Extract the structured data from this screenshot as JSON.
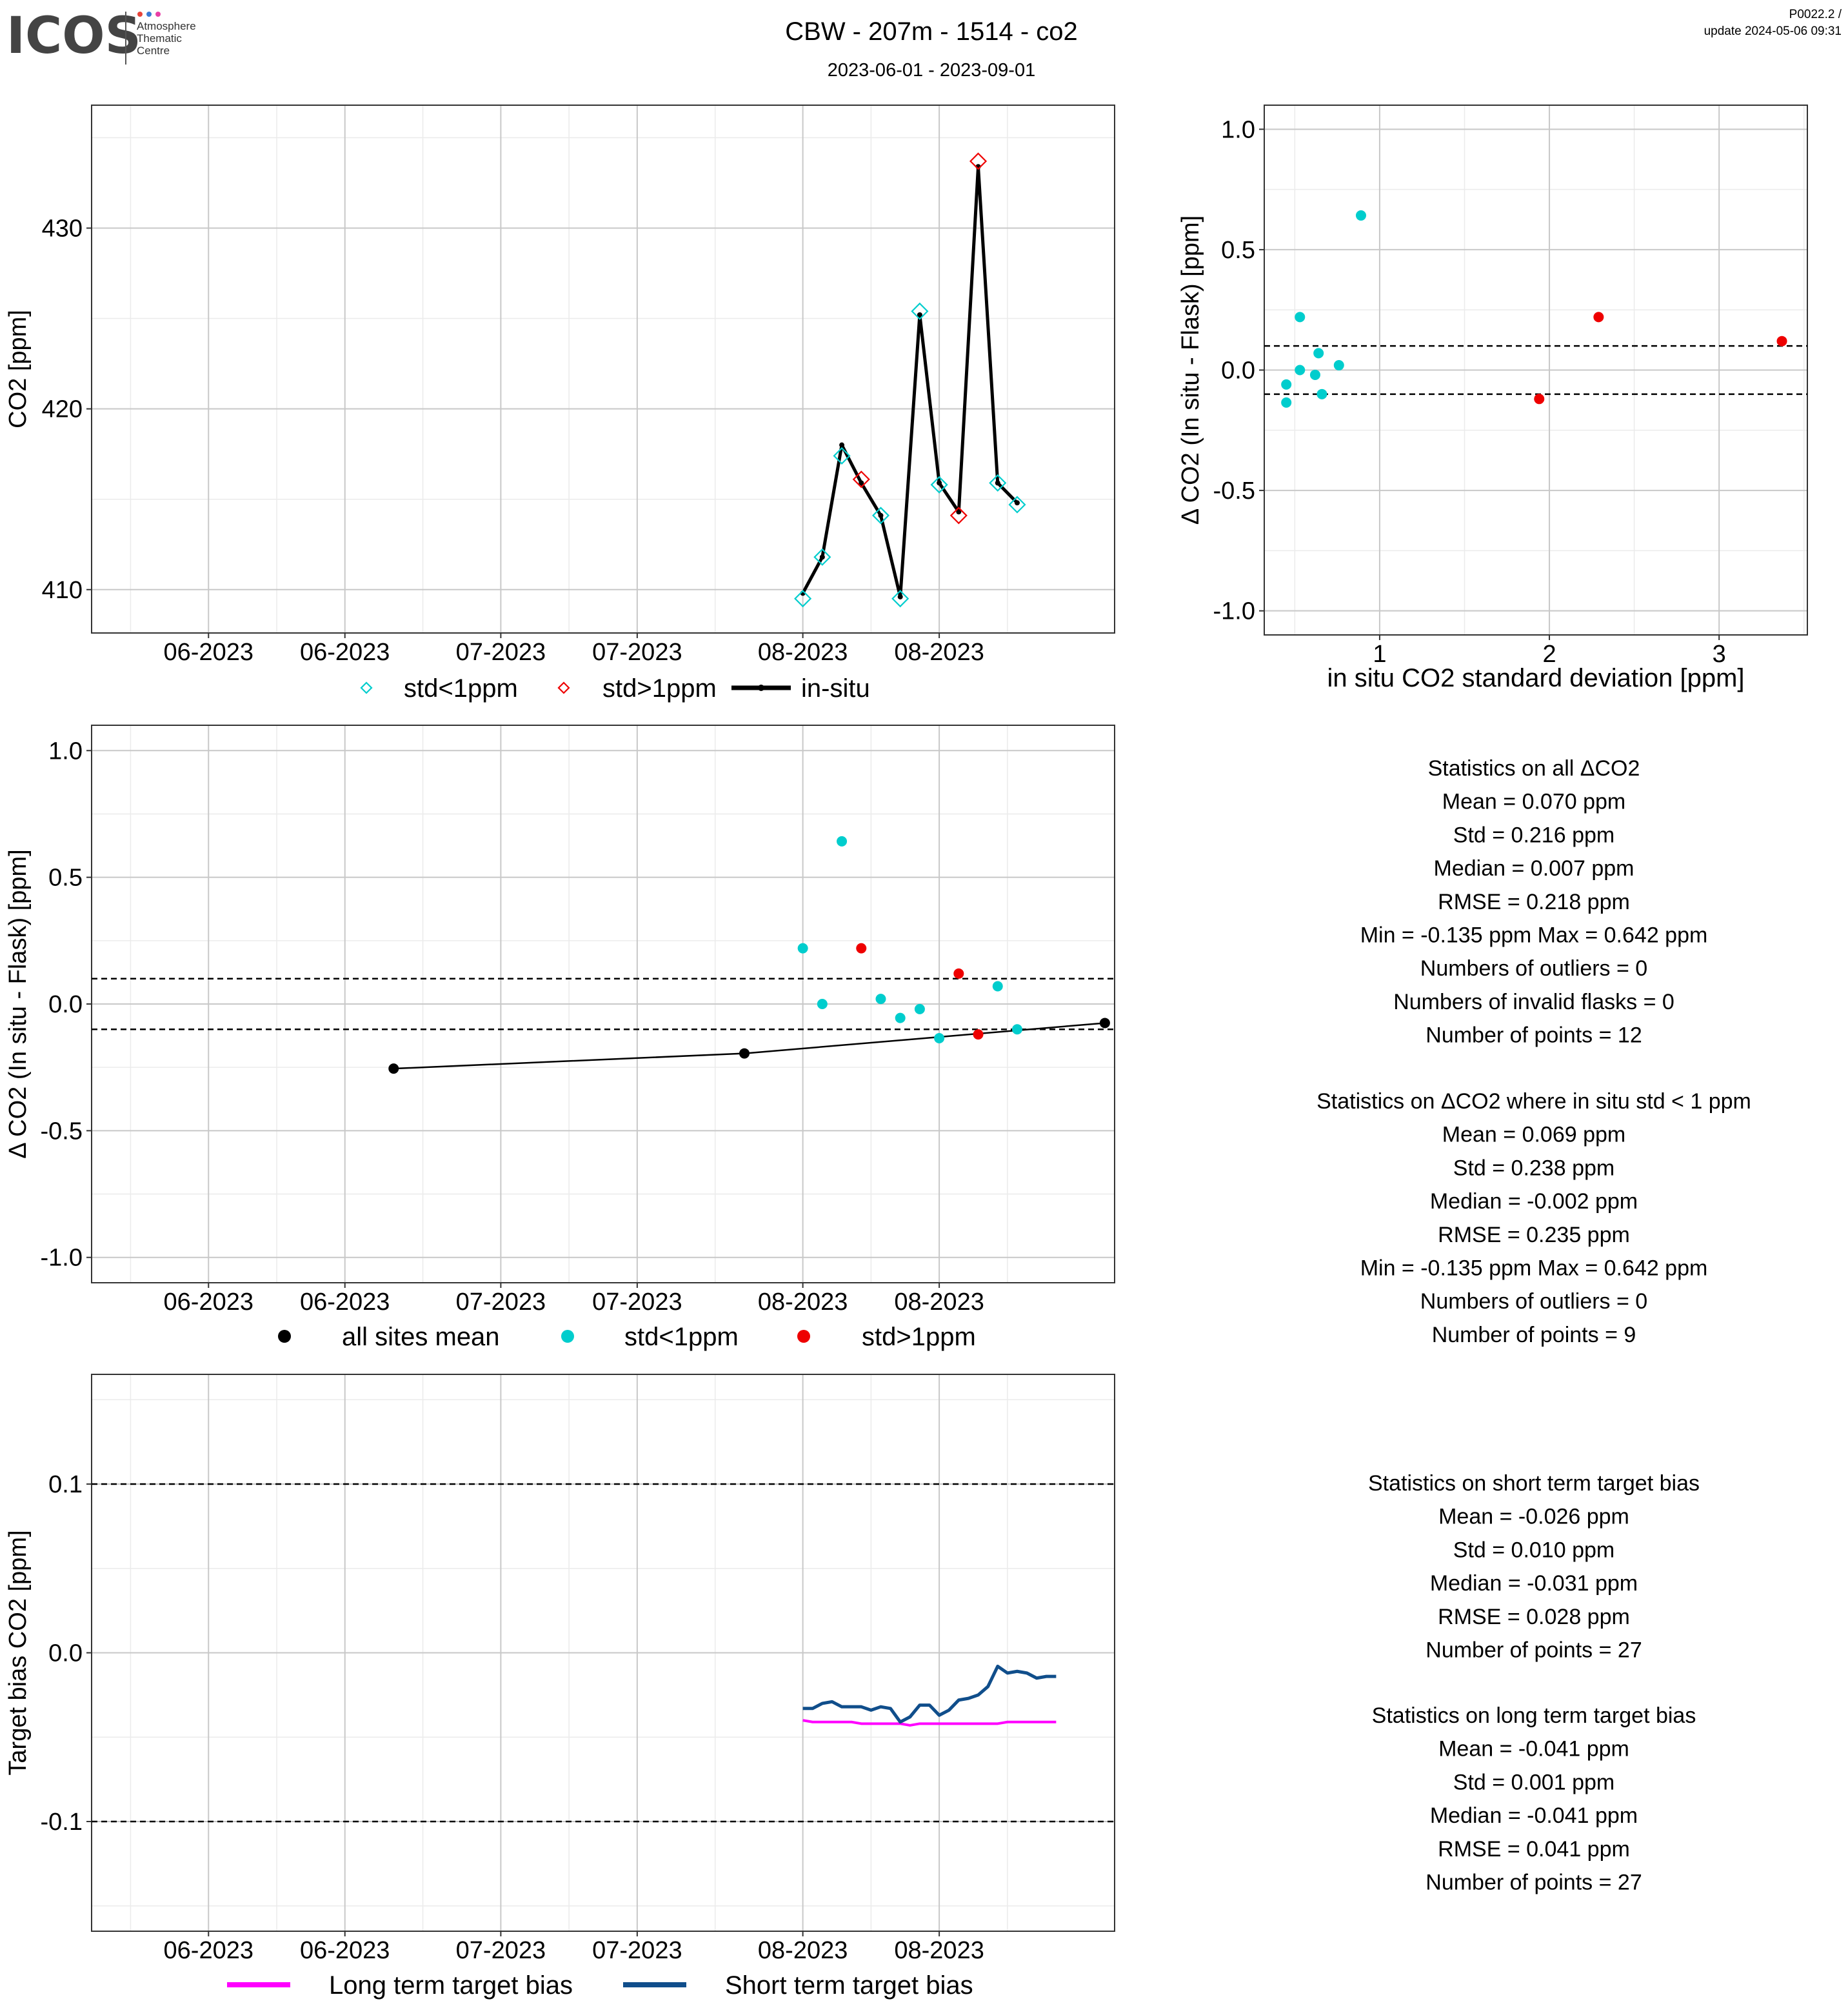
{
  "header": {
    "logo_text": "ICOS",
    "logo_sub": [
      "Atmosphere",
      "Thematic",
      "Centre"
    ],
    "title": "CBW - 207m - 1514 - co2",
    "subtitle": "2023-06-01 - 2023-09-01",
    "version": "P0022.2 /",
    "update": "update  2024-05-06 09:31"
  },
  "colors": {
    "std_lt": "#00CDCD",
    "std_gt": "#EE0000",
    "insitu": "#000000",
    "long_bias": "#FF00FF",
    "short_bias": "#104E8B",
    "grid_major": "#C8C8C8",
    "grid_minor": "#EBEBEB",
    "logo_dots": [
      "#E8443A",
      "#3A7BD5",
      "#E83FA6"
    ]
  },
  "chart_data": [
    {
      "id": "co2_timeseries",
      "type": "line",
      "xlabel": "",
      "ylabel": "CO2 [ppm]",
      "x_ticks": [
        "06-2023",
        "06-2023",
        "07-2023",
        "07-2023",
        "08-2023",
        "08-2023"
      ],
      "x_tick_dates": [
        "2023-06-01",
        "2023-06-15",
        "2023-07-01",
        "2023-07-15",
        "2023-08-01",
        "2023-08-15"
      ],
      "xlim": [
        "2023-05-20",
        "2023-09-02"
      ],
      "ylim": [
        407.6,
        436.8
      ],
      "y_ticks": [
        410,
        420,
        430
      ],
      "legend": [
        "std<1ppm",
        "std>1ppm",
        "in-situ"
      ],
      "legend_position": "bottom",
      "insitu": {
        "dates": [
          "2023-08-01",
          "2023-08-03",
          "2023-08-05",
          "2023-08-07",
          "2023-08-09",
          "2023-08-11",
          "2023-08-13",
          "2023-08-15",
          "2023-08-17",
          "2023-08-19",
          "2023-08-21",
          "2023-08-23"
        ],
        "values": [
          409.8,
          411.8,
          418.0,
          415.9,
          414.1,
          409.6,
          425.2,
          415.9,
          414.3,
          433.4,
          415.9,
          414.8
        ]
      },
      "flask_std_lt_1": {
        "dates": [
          "2023-08-01",
          "2023-08-03",
          "2023-08-05",
          "2023-08-09",
          "2023-08-11",
          "2023-08-13",
          "2023-08-15",
          "2023-08-21",
          "2023-08-23"
        ],
        "values": [
          409.5,
          411.8,
          417.4,
          414.1,
          409.5,
          425.4,
          415.8,
          415.9,
          414.7
        ]
      },
      "flask_std_gt_1": {
        "dates": [
          "2023-08-07",
          "2023-08-17",
          "2023-08-19"
        ],
        "values": [
          416.1,
          414.1,
          433.7
        ]
      }
    },
    {
      "id": "delta_vs_std",
      "type": "scatter",
      "xlabel": "in situ CO2 standard deviation [ppm]",
      "ylabel": "Δ CO2 (In situ - Flask) [ppm]",
      "xlim": [
        0.32,
        3.52
      ],
      "ylim": [
        -1.1,
        1.1
      ],
      "x_ticks": [
        1,
        2,
        3
      ],
      "y_ticks": [
        "1.0",
        "0.5",
        "0.0",
        "-0.5",
        "-1.0"
      ],
      "y_tick_values": [
        1.0,
        0.5,
        0.0,
        -0.5,
        -1.0
      ],
      "hlines": [
        0.1,
        -0.1
      ],
      "series": [
        {
          "name": "std<1ppm",
          "x": [
            0.45,
            0.45,
            0.53,
            0.53,
            0.62,
            0.64,
            0.66,
            0.76,
            0.89
          ],
          "y": [
            -0.06,
            -0.135,
            0.0,
            0.22,
            -0.02,
            0.07,
            -0.1,
            0.02,
            0.642
          ]
        },
        {
          "name": "std>1ppm",
          "x": [
            1.94,
            2.29,
            3.37
          ],
          "y": [
            -0.12,
            0.22,
            0.12
          ]
        }
      ]
    },
    {
      "id": "delta_timeseries",
      "type": "scatter",
      "xlabel": "",
      "ylabel": "Δ CO2 (In situ - Flask) [ppm]",
      "x_ticks": [
        "06-2023",
        "06-2023",
        "07-2023",
        "07-2023",
        "08-2023",
        "08-2023"
      ],
      "x_tick_dates": [
        "2023-06-01",
        "2023-06-15",
        "2023-07-01",
        "2023-07-15",
        "2023-08-01",
        "2023-08-15"
      ],
      "xlim": [
        "2023-05-20",
        "2023-09-02"
      ],
      "ylim": [
        -1.1,
        1.1
      ],
      "y_ticks": [
        "1.0",
        "0.5",
        "0.0",
        "-0.5",
        "-1.0"
      ],
      "y_tick_values": [
        1.0,
        0.5,
        0.0,
        -0.5,
        -1.0
      ],
      "hlines": [
        0.1,
        -0.1
      ],
      "legend": [
        "all sites mean",
        "std<1ppm",
        "std>1ppm"
      ],
      "legend_position": "bottom",
      "all_sites_mean": {
        "dates": [
          "2023-06-20",
          "2023-07-26",
          "2023-09-01"
        ],
        "values": [
          -0.255,
          -0.195,
          -0.075
        ]
      },
      "std_lt_1": {
        "dates": [
          "2023-08-01",
          "2023-08-03",
          "2023-08-05",
          "2023-08-09",
          "2023-08-11",
          "2023-08-13",
          "2023-08-15",
          "2023-08-21",
          "2023-08-23"
        ],
        "values": [
          0.22,
          0.0,
          0.642,
          0.02,
          -0.055,
          -0.02,
          -0.135,
          0.07,
          -0.1
        ]
      },
      "std_gt_1": {
        "dates": [
          "2023-08-07",
          "2023-08-17",
          "2023-08-19"
        ],
        "values": [
          0.22,
          0.12,
          -0.12
        ]
      }
    },
    {
      "id": "target_bias",
      "type": "line",
      "xlabel": "",
      "ylabel": "Target bias CO2 [ppm]",
      "x_ticks": [
        "06-2023",
        "06-2023",
        "07-2023",
        "07-2023",
        "08-2023",
        "08-2023"
      ],
      "x_tick_dates": [
        "2023-06-01",
        "2023-06-15",
        "2023-07-01",
        "2023-07-15",
        "2023-08-01",
        "2023-08-15"
      ],
      "xlim": [
        "2023-05-20",
        "2023-09-02"
      ],
      "ylim": [
        -0.165,
        0.165
      ],
      "y_ticks": [
        "0.1",
        "0.0",
        "-0.1"
      ],
      "y_tick_values": [
        0.1,
        0.0,
        -0.1
      ],
      "hlines": [
        0.1,
        -0.1
      ],
      "legend": [
        "Long term target bias",
        "Short term target bias"
      ],
      "legend_position": "bottom",
      "series": [
        {
          "name": "Long term target bias",
          "dates": [
            "2023-08-01",
            "2023-08-02",
            "2023-08-03",
            "2023-08-04",
            "2023-08-05",
            "2023-08-06",
            "2023-08-07",
            "2023-08-08",
            "2023-08-09",
            "2023-08-10",
            "2023-08-11",
            "2023-08-12",
            "2023-08-13",
            "2023-08-14",
            "2023-08-15",
            "2023-08-16",
            "2023-08-17",
            "2023-08-18",
            "2023-08-19",
            "2023-08-20",
            "2023-08-21",
            "2023-08-22",
            "2023-08-23",
            "2023-08-24",
            "2023-08-25",
            "2023-08-26",
            "2023-08-27"
          ],
          "values": [
            -0.04,
            -0.041,
            -0.041,
            -0.041,
            -0.041,
            -0.041,
            -0.042,
            -0.042,
            -0.042,
            -0.042,
            -0.042,
            -0.043,
            -0.042,
            -0.042,
            -0.042,
            -0.042,
            -0.042,
            -0.042,
            -0.042,
            -0.042,
            -0.042,
            -0.041,
            -0.041,
            -0.041,
            -0.041,
            -0.041,
            -0.041
          ]
        },
        {
          "name": "Short term target bias",
          "dates": [
            "2023-08-01",
            "2023-08-02",
            "2023-08-03",
            "2023-08-04",
            "2023-08-05",
            "2023-08-06",
            "2023-08-07",
            "2023-08-08",
            "2023-08-09",
            "2023-08-10",
            "2023-08-11",
            "2023-08-12",
            "2023-08-13",
            "2023-08-14",
            "2023-08-15",
            "2023-08-16",
            "2023-08-17",
            "2023-08-18",
            "2023-08-19",
            "2023-08-20",
            "2023-08-21",
            "2023-08-22",
            "2023-08-23",
            "2023-08-24",
            "2023-08-25",
            "2023-08-26",
            "2023-08-27"
          ],
          "values": [
            -0.033,
            -0.033,
            -0.03,
            -0.029,
            -0.032,
            -0.032,
            -0.032,
            -0.034,
            -0.032,
            -0.033,
            -0.041,
            -0.038,
            -0.031,
            -0.031,
            -0.037,
            -0.034,
            -0.028,
            -0.027,
            -0.025,
            -0.02,
            -0.008,
            -0.012,
            -0.011,
            -0.012,
            -0.015,
            -0.014,
            -0.014
          ]
        }
      ]
    }
  ],
  "stats": [
    {
      "id": "all",
      "lines": [
        "Statistics on all ΔCO2",
        "Mean =  0.070 ppm",
        "Std =  0.216 ppm",
        "Median =  0.007 ppm",
        "RMSE =  0.218 ppm",
        "Min =  -0.135 ppm Max =  0.642 ppm",
        "Numbers of outliers =  0",
        "Numbers of invalid flasks =  0",
        "Number of points =  12"
      ]
    },
    {
      "id": "std_lt_1",
      "lines": [
        "Statistics on ΔCO2 where in situ std < 1 ppm",
        "Mean =  0.069 ppm",
        "Std =  0.238 ppm",
        "Median =  -0.002 ppm",
        "RMSE =  0.235 ppm",
        "Min =  -0.135 ppm Max =  0.642 ppm",
        "Numbers of outliers =  0",
        "Number of points =  9"
      ]
    },
    {
      "id": "short_term",
      "lines": [
        "Statistics on short term target bias",
        "Mean =  -0.026 ppm",
        "Std =  0.010 ppm",
        "Median =  -0.031 ppm",
        "RMSE =  0.028 ppm",
        "Number of points =  27"
      ]
    },
    {
      "id": "long_term",
      "lines": [
        "Statistics on long term target bias",
        "Mean =  -0.041 ppm",
        "Std =  0.001 ppm",
        "Median =  -0.041 ppm",
        "RMSE =  0.041 ppm",
        "Number of points =  27"
      ]
    }
  ]
}
